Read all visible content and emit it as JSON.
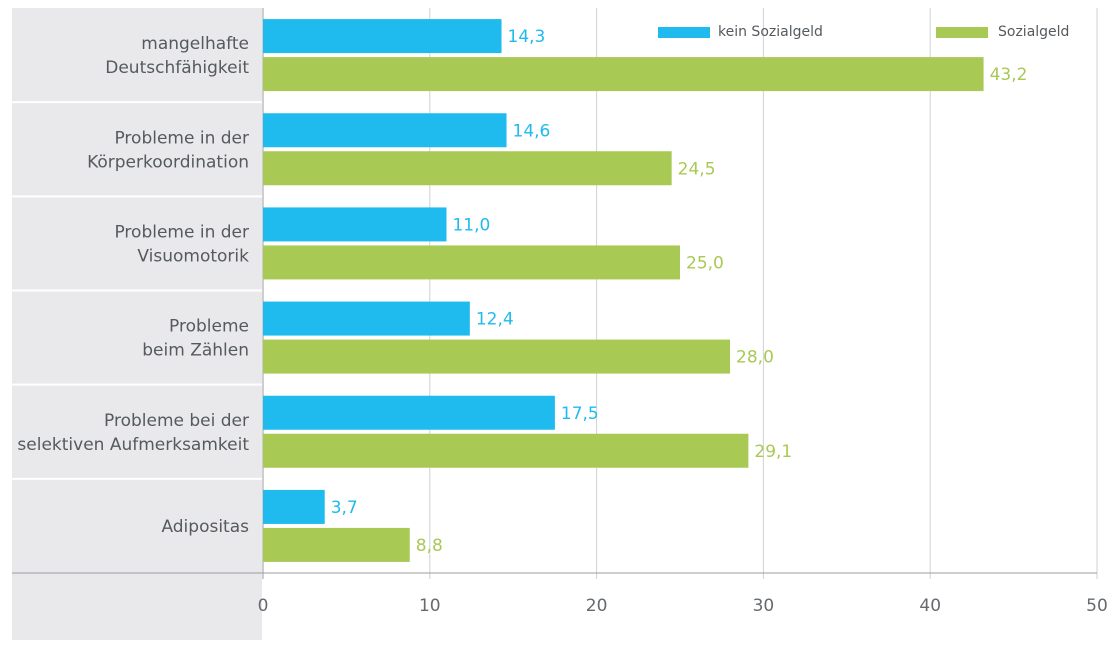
{
  "chart_data": {
    "type": "bar",
    "orientation": "horizontal",
    "categories": [
      [
        "mangelhafte",
        "Deutschfähigkeit"
      ],
      [
        "Probleme in der",
        "Körperkoordination"
      ],
      [
        "Probleme in der",
        "Visuomotorik"
      ],
      [
        "Probleme",
        "beim Zählen"
      ],
      [
        "Probleme bei der",
        "selektiven Aufmerksamkeit"
      ],
      [
        "Adipositas"
      ]
    ],
    "series": [
      {
        "name": "kein Sozialgeld",
        "color": "#1fbbee",
        "values": [
          14.3,
          14.6,
          11.0,
          12.4,
          17.5,
          3.7
        ],
        "labels": [
          "14,3",
          "14,6",
          "11,0",
          "12,4",
          "17,5",
          "3,7"
        ]
      },
      {
        "name": "Sozialgeld",
        "color": "#a9c955",
        "values": [
          43.2,
          24.5,
          25.0,
          28.0,
          29.1,
          8.8
        ],
        "labels": [
          "43,2",
          "24,5",
          "25,0",
          "28,0",
          "29,1",
          "8,8"
        ]
      }
    ],
    "xlim": [
      0,
      50
    ],
    "xticks": [
      0,
      10,
      20,
      30,
      40,
      50
    ],
    "xtick_labels": [
      "0",
      "10",
      "20",
      "30",
      "40",
      "50"
    ],
    "title": "",
    "xlabel": "",
    "ylabel": "",
    "legend_position": "top-right",
    "grid": "vertical"
  },
  "colors": {
    "label_panel": "#e9e9eb",
    "grid": "#cfd1d4",
    "category_separator": "#ffffff",
    "axis": "#9a9da1"
  }
}
